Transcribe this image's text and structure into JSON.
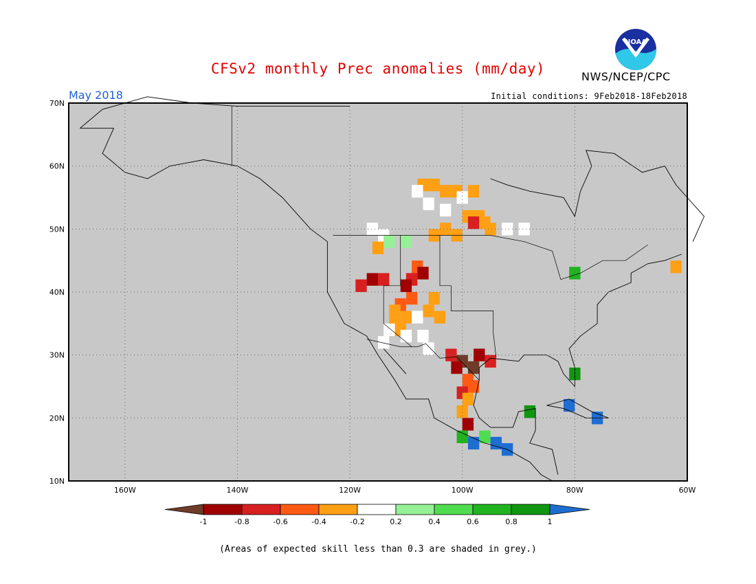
{
  "header": {
    "title": "CFSv2 monthly Prec anomalies (mm/day)",
    "agency": "NWS/NCEP/CPC",
    "logo_text": "NOAA",
    "period": "May 2018",
    "initial_conditions": "Initial conditions: 9Feb2018-18Feb2018"
  },
  "map": {
    "lon_range": [
      -170,
      -60
    ],
    "lat_range": [
      10,
      70
    ],
    "lon_ticks": [
      {
        "lon": -160,
        "label": "160W"
      },
      {
        "lon": -140,
        "label": "140W"
      },
      {
        "lon": -120,
        "label": "120W"
      },
      {
        "lon": -100,
        "label": "100W"
      },
      {
        "lon": -80,
        "label": "80W"
      },
      {
        "lon": -60,
        "label": "60W"
      }
    ],
    "lat_ticks": [
      {
        "lat": 10,
        "label": "10N"
      },
      {
        "lat": 20,
        "label": "20N"
      },
      {
        "lat": 30,
        "label": "30N"
      },
      {
        "lat": 40,
        "label": "40N"
      },
      {
        "lat": 50,
        "label": "50N"
      },
      {
        "lat": 60,
        "label": "60N"
      },
      {
        "lat": 70,
        "label": "70N"
      }
    ],
    "colors": {
      "low_skill": "#c8c8c8",
      "lt_-1": "#6e3c28",
      "-1_-0.8": "#a00000",
      "-0.8_-0.6": "#d82020",
      "-0.6_-0.4": "#ff5a14",
      "-0.4_-0.2": "#ffa014",
      "-0.2_0.2": "#ffffff",
      "0.2_0.4": "#96f096",
      "0.4_0.6": "#50dc50",
      "0.6_0.8": "#20b420",
      "0.8_1": "#109610",
      "gt_1": "#1e6ed2"
    },
    "anomaly_cells": [
      {
        "lon": -105,
        "lat": 57,
        "cls": "-0.4_-0.2"
      },
      {
        "lon": -107,
        "lat": 57,
        "cls": "-0.4_-0.2"
      },
      {
        "lon": -103,
        "lat": 56,
        "cls": "-0.4_-0.2"
      },
      {
        "lon": -101,
        "lat": 56,
        "cls": "-0.4_-0.2"
      },
      {
        "lon": -108,
        "lat": 56,
        "cls": "-0.2_0.2"
      },
      {
        "lon": -100,
        "lat": 55,
        "cls": "-0.2_0.2"
      },
      {
        "lon": -98,
        "lat": 56,
        "cls": "-0.4_-0.2"
      },
      {
        "lon": -106,
        "lat": 54,
        "cls": "-0.2_0.2"
      },
      {
        "lon": -103,
        "lat": 53,
        "cls": "-0.2_0.2"
      },
      {
        "lon": -99,
        "lat": 52,
        "cls": "-0.4_-0.2"
      },
      {
        "lon": -97,
        "lat": 52,
        "cls": "-0.4_-0.2"
      },
      {
        "lon": -98,
        "lat": 51,
        "cls": "-0.8_-0.6"
      },
      {
        "lon": -96,
        "lat": 51,
        "cls": "-0.4_-0.2"
      },
      {
        "lon": -95,
        "lat": 50,
        "cls": "-0.4_-0.2"
      },
      {
        "lon": -103,
        "lat": 50,
        "cls": "-0.4_-0.2"
      },
      {
        "lon": -105,
        "lat": 49,
        "cls": "-0.4_-0.2"
      },
      {
        "lon": -101,
        "lat": 49,
        "cls": "-0.4_-0.2"
      },
      {
        "lon": -92,
        "lat": 50,
        "cls": "-0.2_0.2"
      },
      {
        "lon": -89,
        "lat": 50,
        "cls": "-0.2_0.2"
      },
      {
        "lon": -116,
        "lat": 50,
        "cls": "-0.2_0.2"
      },
      {
        "lon": -114,
        "lat": 49,
        "cls": "-0.2_0.2"
      },
      {
        "lon": -113,
        "lat": 48,
        "cls": "0.2_0.4"
      },
      {
        "lon": -110,
        "lat": 48,
        "cls": "0.2_0.4"
      },
      {
        "lon": -115,
        "lat": 47,
        "cls": "-0.4_-0.2"
      },
      {
        "lon": -108,
        "lat": 44,
        "cls": "-0.6_-0.4"
      },
      {
        "lon": -107,
        "lat": 43,
        "cls": "-1_-0.8"
      },
      {
        "lon": -109,
        "lat": 42,
        "cls": "-0.8_-0.6"
      },
      {
        "lon": -114,
        "lat": 42,
        "cls": "-0.8_-0.6"
      },
      {
        "lon": -116,
        "lat": 42,
        "cls": "-1_-0.8"
      },
      {
        "lon": -118,
        "lat": 41,
        "cls": "-0.8_-0.6"
      },
      {
        "lon": -110,
        "lat": 41,
        "cls": "-1_-0.8"
      },
      {
        "lon": -109,
        "lat": 39,
        "cls": "-0.6_-0.4"
      },
      {
        "lon": -111,
        "lat": 38,
        "cls": "-0.6_-0.4"
      },
      {
        "lon": -105,
        "lat": 39,
        "cls": "-0.4_-0.2"
      },
      {
        "lon": -106,
        "lat": 37,
        "cls": "-0.4_-0.2"
      },
      {
        "lon": -112,
        "lat": 37,
        "cls": "-0.4_-0.2"
      },
      {
        "lon": -110,
        "lat": 36,
        "cls": "-0.4_-0.2"
      },
      {
        "lon": -108,
        "lat": 36,
        "cls": "-0.2_0.2"
      },
      {
        "lon": -104,
        "lat": 36,
        "cls": "-0.4_-0.2"
      },
      {
        "lon": -112,
        "lat": 35,
        "cls": "-0.4_-0.2"
      },
      {
        "lon": -111,
        "lat": 34,
        "cls": "-0.4_-0.2"
      },
      {
        "lon": -113,
        "lat": 34,
        "cls": "-0.2_0.2"
      },
      {
        "lon": -110,
        "lat": 33,
        "cls": "-0.2_0.2"
      },
      {
        "lon": -107,
        "lat": 33,
        "cls": "-0.2_0.2"
      },
      {
        "lon": -114,
        "lat": 32,
        "cls": "-0.2_0.2"
      },
      {
        "lon": -106,
        "lat": 31,
        "cls": "-0.2_0.2"
      },
      {
        "lon": -102,
        "lat": 30,
        "cls": "-0.8_-0.6"
      },
      {
        "lon": -100,
        "lat": 29,
        "cls": "lt_-1"
      },
      {
        "lon": -98,
        "lat": 28,
        "cls": "lt_-1"
      },
      {
        "lon": -101,
        "lat": 28,
        "cls": "-1_-0.8"
      },
      {
        "lon": -97,
        "lat": 30,
        "cls": "-1_-0.8"
      },
      {
        "lon": -95,
        "lat": 29,
        "cls": "-0.8_-0.6"
      },
      {
        "lon": -99,
        "lat": 26,
        "cls": "-0.6_-0.4"
      },
      {
        "lon": -98,
        "lat": 25,
        "cls": "-0.6_-0.4"
      },
      {
        "lon": -100,
        "lat": 24,
        "cls": "-0.8_-0.6"
      },
      {
        "lon": -99,
        "lat": 23,
        "cls": "-0.4_-0.2"
      },
      {
        "lon": -100,
        "lat": 21,
        "cls": "-0.4_-0.2"
      },
      {
        "lon": -99,
        "lat": 19,
        "cls": "-1_-0.8"
      },
      {
        "lon": -100,
        "lat": 17,
        "cls": "0.6_0.8"
      },
      {
        "lon": -98,
        "lat": 16,
        "cls": "gt_1"
      },
      {
        "lon": -96,
        "lat": 17,
        "cls": "0.4_0.6"
      },
      {
        "lon": -94,
        "lat": 16,
        "cls": "gt_1"
      },
      {
        "lon": -92,
        "lat": 15,
        "cls": "gt_1"
      },
      {
        "lon": -88,
        "lat": 21,
        "cls": "0.8_1"
      },
      {
        "lon": -80,
        "lat": 27,
        "cls": "0.8_1"
      },
      {
        "lon": -81,
        "lat": 22,
        "cls": "gt_1"
      },
      {
        "lon": -76,
        "lat": 20,
        "cls": "gt_1"
      },
      {
        "lon": -80,
        "lat": 43,
        "cls": "0.6_0.8"
      },
      {
        "lon": -62,
        "lat": 44,
        "cls": "-0.4_-0.2"
      }
    ]
  },
  "colorbar": {
    "boundaries": [
      "-1",
      "-0.8",
      "-0.6",
      "-0.4",
      "-0.2",
      "0.2",
      "0.4",
      "0.6",
      "0.8",
      "1"
    ],
    "colors": [
      "#6e3c28",
      "#a00000",
      "#d82020",
      "#ff5a14",
      "#ffa014",
      "#ffffff",
      "#96f096",
      "#50dc50",
      "#20b420",
      "#109610",
      "#1e6ed2"
    ]
  },
  "footnote": "(Areas of expected skill less than 0.3 are shaded in grey.)"
}
